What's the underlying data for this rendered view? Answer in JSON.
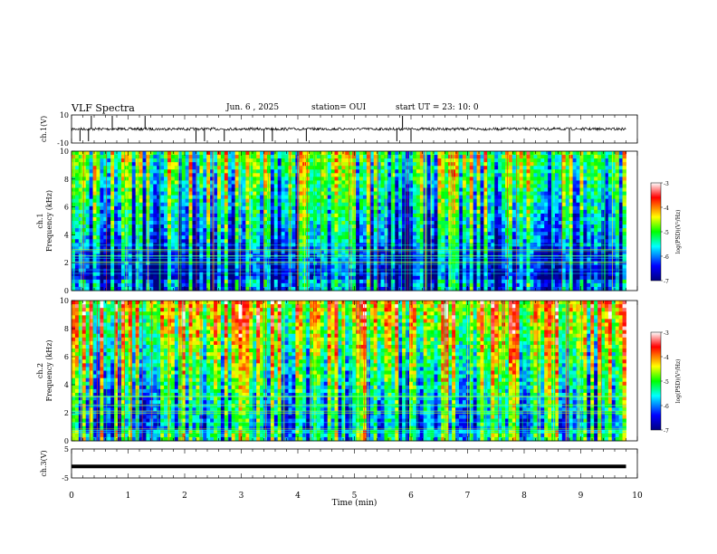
{
  "header": {
    "title": "VLF Spectra",
    "date": "Jun. 6 , 2025",
    "station": "station= OUI",
    "start": "start UT = 23: 10: 0"
  },
  "chart_data": [
    {
      "type": "line",
      "ylabel": "ch.1(V)",
      "ylim": [
        -10,
        10
      ],
      "yticks": [
        "10",
        "-10"
      ],
      "baseline": 0,
      "description_of_trace": "noisy waveform near 0 V with sparse negative spikes",
      "spike_times_min": [
        0.15,
        0.3,
        0.35,
        0.72,
        1.3,
        2.2,
        2.35,
        2.7,
        3.4,
        3.55,
        4.15,
        5.75,
        5.85,
        6.0,
        8.8
      ],
      "xlim": [
        0,
        10
      ]
    },
    {
      "type": "heatmap",
      "ylabel": "Frequency (kHz)",
      "channel_label": "ch.1",
      "ylim": [
        0,
        10
      ],
      "yticks": [
        "0",
        "2",
        "4",
        "6",
        "8",
        "10"
      ],
      "colorbar": {
        "label": "log(PSD)(V²/Hz)",
        "ticks": [
          "-3",
          "-4",
          "-5",
          "-6",
          "-7"
        ],
        "range": [
          -7,
          -3
        ]
      },
      "xlim": [
        0,
        9.8
      ]
    },
    {
      "type": "heatmap",
      "ylabel": "Frequency (kHz)",
      "channel_label": "ch.2",
      "ylim": [
        0,
        10
      ],
      "yticks": [
        "0",
        "2",
        "4",
        "6",
        "8",
        "10"
      ],
      "colorbar": {
        "label": "log(PSD)(V²/Hz)",
        "ticks": [
          "-3",
          "-4",
          "-5",
          "-6",
          "-7"
        ],
        "range": [
          -7,
          -3
        ]
      },
      "xlim": [
        0,
        9.8
      ]
    },
    {
      "type": "line",
      "ylabel": "ch.3(V)",
      "ylim": [
        -5,
        5
      ],
      "yticks": [
        "5",
        "-5"
      ],
      "value": -1,
      "xlim": [
        0,
        9.8
      ]
    }
  ],
  "xaxis": {
    "label": "Time (min)",
    "ticks": [
      "0",
      "1",
      "2",
      "3",
      "4",
      "5",
      "6",
      "7",
      "8",
      "9",
      "10"
    ],
    "range": [
      0,
      10
    ]
  },
  "colors": {
    "jet": [
      "#00007f",
      "#0000ff",
      "#00ffff",
      "#00ff00",
      "#ffff00",
      "#ff0000",
      "#ffffff"
    ]
  }
}
